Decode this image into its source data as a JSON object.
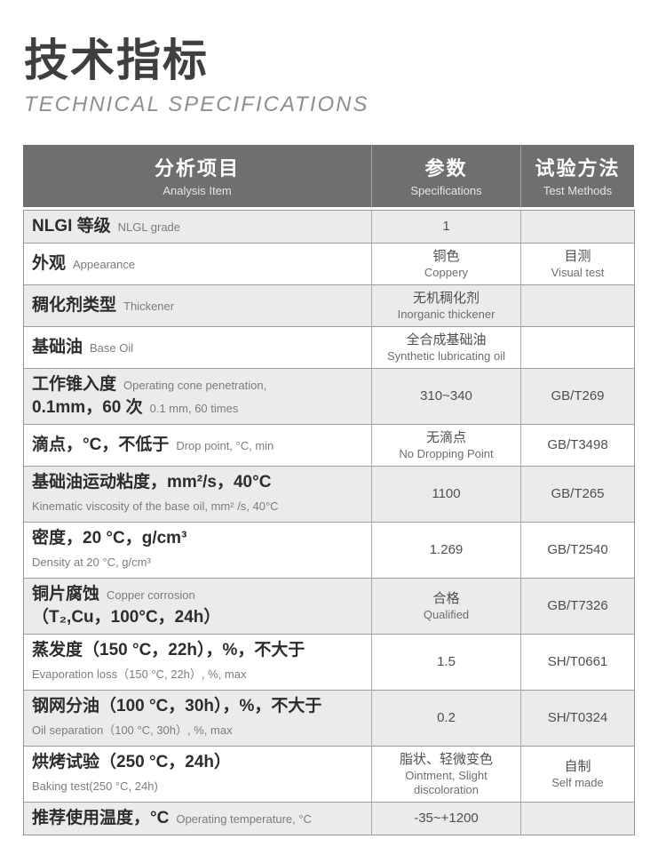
{
  "page": {
    "title_zh": "技术指标",
    "title_en": "TECHNICAL SPECIFICATIONS"
  },
  "colors": {
    "header_bg": "#6f6f6f",
    "header_text": "#ffffff",
    "alt_row_bg": "#ebebeb",
    "label_text": "#2d2d2d",
    "sub_text": "#7c7c7c"
  },
  "table": {
    "header": {
      "columns": [
        {
          "zh": "分析项目",
          "en": "Analysis Item"
        },
        {
          "zh": "参数",
          "en": "Specifications"
        },
        {
          "zh": "试验方法",
          "en": "Test Methods"
        }
      ]
    },
    "rows": [
      {
        "label": [
          {
            "zh": "NLGI 等级",
            "en": "NLGL grade"
          }
        ],
        "spec": {
          "main": "1",
          "sub": ""
        },
        "method": {
          "main": "",
          "sub": ""
        }
      },
      {
        "label": [
          {
            "zh": "外观",
            "en": "Appearance"
          }
        ],
        "spec": {
          "main": "铜色",
          "sub": "Coppery"
        },
        "method": {
          "main": "目测",
          "sub": "Visual test"
        }
      },
      {
        "label": [
          {
            "zh": "稠化剂类型",
            "en": "Thickener"
          }
        ],
        "spec": {
          "main": "无机稠化剂",
          "sub": "Inorganic thickener"
        },
        "method": {
          "main": "",
          "sub": ""
        }
      },
      {
        "label": [
          {
            "zh": "基础油",
            "en": "Base Oil"
          }
        ],
        "spec": {
          "main": "全合成基础油",
          "sub": "Synthetic lubricating oil"
        },
        "method": {
          "main": "",
          "sub": ""
        }
      },
      {
        "label": [
          {
            "zh": "工作锥入度",
            "en": "Operating cone penetration,"
          },
          {
            "zh": "0.1mm，60 次",
            "en": "0.1 mm, 60 times"
          }
        ],
        "spec": {
          "main": "310~340",
          "sub": ""
        },
        "method": {
          "main": "GB/T269",
          "sub": ""
        }
      },
      {
        "label": [
          {
            "zh": "滴点，°C，不低于",
            "en": "Drop point, °C, min"
          }
        ],
        "spec": {
          "main": "无滴点",
          "sub": "No Dropping Point"
        },
        "method": {
          "main": "GB/T3498",
          "sub": ""
        }
      },
      {
        "label": [
          {
            "zh": "基础油运动粘度，mm²/s，40°C",
            "en": ""
          },
          {
            "zh": "",
            "en": "Kinematic viscosity of the base oil, mm² /s, 40°C"
          }
        ],
        "spec": {
          "main": "1100",
          "sub": ""
        },
        "method": {
          "main": "GB/T265",
          "sub": ""
        }
      },
      {
        "label": [
          {
            "zh": "密度，20 °C，g/cm³",
            "en": ""
          },
          {
            "zh": "",
            "en": "Density at 20 °C, g/cm³"
          }
        ],
        "spec": {
          "main": "1.269",
          "sub": ""
        },
        "method": {
          "main": "GB/T2540",
          "sub": ""
        }
      },
      {
        "label": [
          {
            "zh": "铜片腐蚀",
            "en": "Copper corrosion"
          },
          {
            "zh": "（T₂,Cu，100°C，24h）",
            "en": ""
          }
        ],
        "spec": {
          "main": "合格",
          "sub": "Qualified"
        },
        "method": {
          "main": "GB/T7326",
          "sub": ""
        }
      },
      {
        "label": [
          {
            "zh": "蒸发度（150 °C，22h），%，不大于",
            "en": ""
          },
          {
            "zh": "",
            "en": "Evaporation loss（150 °C, 22h）, %, max"
          }
        ],
        "spec": {
          "main": "1.5",
          "sub": ""
        },
        "method": {
          "main": "SH/T0661",
          "sub": ""
        }
      },
      {
        "label": [
          {
            "zh": "钢网分油（100 °C，30h），%，不大于",
            "en": ""
          },
          {
            "zh": "",
            "en": "Oil separation（100 °C, 30h）, %, max"
          }
        ],
        "spec": {
          "main": "0.2",
          "sub": ""
        },
        "method": {
          "main": "SH/T0324",
          "sub": ""
        }
      },
      {
        "label": [
          {
            "zh": "烘烤试验（250 °C，24h）",
            "en": ""
          },
          {
            "zh": "",
            "en": "Baking test(250 °C, 24h)"
          }
        ],
        "spec": {
          "main": "脂状、轻微变色",
          "sub": "Ointment, Slight\ndiscoloration"
        },
        "method": {
          "main": "自制",
          "sub": "Self made"
        }
      },
      {
        "label": [
          {
            "zh": "推荐使用温度，°C",
            "en": "Operating temperature, °C"
          }
        ],
        "spec": {
          "main": "-35~+1200",
          "sub": ""
        },
        "method": {
          "main": "",
          "sub": ""
        }
      }
    ]
  }
}
